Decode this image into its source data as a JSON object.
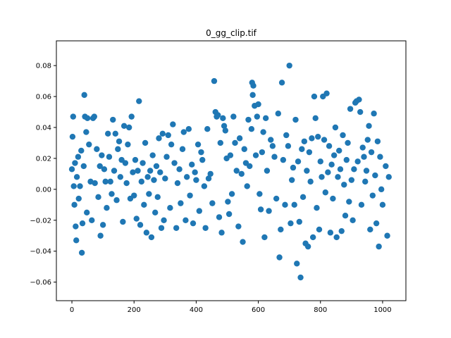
{
  "chart_data": {
    "type": "scatter",
    "title": "0_gg_clip.tif",
    "xlabel": "",
    "ylabel": "",
    "xlim": [
      -50,
      1075
    ],
    "ylim": [
      -0.072,
      0.096
    ],
    "xticks": [
      0,
      200,
      400,
      600,
      800,
      1000
    ],
    "xtick_labels": [
      "0",
      "200",
      "400",
      "600",
      "800",
      "1000"
    ],
    "yticks": [
      -0.06,
      -0.04,
      -0.02,
      0.0,
      0.02,
      0.04,
      0.06,
      0.08
    ],
    "ytick_labels": [
      "−0.06",
      "−0.04",
      "−0.02",
      "0.00",
      "0.02",
      "0.04",
      "0.06",
      "0.08"
    ],
    "grid": false,
    "marker_color": "#1f77b4",
    "series": [
      {
        "points": [
          [
            0,
            0.013
          ],
          [
            2,
            0.034
          ],
          [
            4,
            0.047
          ],
          [
            6,
            0.002
          ],
          [
            8,
            -0.01
          ],
          [
            10,
            0.017
          ],
          [
            12,
            -0.024
          ],
          [
            14,
            -0.033
          ],
          [
            16,
            0.008
          ],
          [
            20,
            0.021
          ],
          [
            22,
            -0.006
          ],
          [
            26,
            0.002
          ],
          [
            30,
            0.025
          ],
          [
            32,
            -0.041
          ],
          [
            34,
            -0.022
          ],
          [
            38,
            0.015
          ],
          [
            40,
            0.061
          ],
          [
            42,
            0.047
          ],
          [
            46,
            0.037
          ],
          [
            48,
            -0.015
          ],
          [
            50,
            0.046
          ],
          [
            55,
            0.029
          ],
          [
            60,
            0.005
          ],
          [
            64,
            -0.02
          ],
          [
            68,
            0.046
          ],
          [
            72,
            0.047
          ],
          [
            74,
            0.004
          ],
          [
            80,
            0.026
          ],
          [
            85,
            -0.005
          ],
          [
            90,
            0.015
          ],
          [
            92,
            -0.03
          ],
          [
            96,
            0.022
          ],
          [
            100,
            -0.023
          ],
          [
            104,
            0.013
          ],
          [
            108,
            0.005
          ],
          [
            112,
            -0.012
          ],
          [
            116,
            0.036
          ],
          [
            120,
            0.021
          ],
          [
            124,
            0.005
          ],
          [
            128,
            -0.003
          ],
          [
            132,
            0.045
          ],
          [
            136,
            0.012
          ],
          [
            140,
            0.036
          ],
          [
            144,
            -0.007
          ],
          [
            148,
            0.026
          ],
          [
            152,
            0.031
          ],
          [
            156,
            0.008
          ],
          [
            160,
            0.019
          ],
          [
            164,
            -0.021
          ],
          [
            168,
            0.041
          ],
          [
            172,
            0.017
          ],
          [
            176,
            0.004
          ],
          [
            180,
            0.029
          ],
          [
            184,
            0.04
          ],
          [
            188,
            -0.006
          ],
          [
            192,
            0.047
          ],
          [
            196,
            0.011
          ],
          [
            200,
            -0.004
          ],
          [
            204,
            0.019
          ],
          [
            208,
            -0.019
          ],
          [
            212,
            0.012
          ],
          [
            216,
            0.057
          ],
          [
            220,
            -0.023
          ],
          [
            224,
            0.005
          ],
          [
            228,
            0.017
          ],
          [
            232,
            -0.01
          ],
          [
            236,
            0.03
          ],
          [
            240,
            -0.028
          ],
          [
            244,
            0.008
          ],
          [
            248,
            -0.003
          ],
          [
            252,
            0.012
          ],
          [
            256,
            -0.031
          ],
          [
            260,
            0.022
          ],
          [
            264,
            0.006
          ],
          [
            268,
            -0.015
          ],
          [
            272,
            0.015
          ],
          [
            276,
            -0.005
          ],
          [
            280,
            0.033
          ],
          [
            284,
            0.011
          ],
          [
            288,
            -0.025
          ],
          [
            292,
            0.036
          ],
          [
            296,
            -0.02
          ],
          [
            300,
            0.007
          ],
          [
            305,
            0.021
          ],
          [
            310,
            0.035
          ],
          [
            316,
            -0.012
          ],
          [
            320,
            0.029
          ],
          [
            325,
            0.042
          ],
          [
            330,
            0.017
          ],
          [
            336,
            -0.025
          ],
          [
            340,
            0.004
          ],
          [
            346,
            0.013
          ],
          [
            350,
            -0.009
          ],
          [
            356,
            0.026
          ],
          [
            360,
            0.037
          ],
          [
            366,
            -0.02
          ],
          [
            370,
            0.008
          ],
          [
            376,
            0.039
          ],
          [
            380,
            -0.004
          ],
          [
            386,
            0.016
          ],
          [
            390,
            -0.022
          ],
          [
            396,
            0.011
          ],
          [
            400,
            0.006
          ],
          [
            406,
            0.029
          ],
          [
            410,
            -0.014
          ],
          [
            416,
            0.024
          ],
          [
            420,
            0.019
          ],
          [
            426,
            0.002
          ],
          [
            430,
            -0.025
          ],
          [
            436,
            0.039
          ],
          [
            440,
            0.007
          ],
          [
            446,
            0.01
          ],
          [
            452,
            -0.009
          ],
          [
            458,
            0.07
          ],
          [
            462,
            0.05
          ],
          [
            466,
            0.047
          ],
          [
            470,
            0.048
          ],
          [
            474,
            -0.018
          ],
          [
            478,
            0.03
          ],
          [
            482,
            -0.028
          ],
          [
            486,
            0.046
          ],
          [
            490,
            0.041
          ],
          [
            494,
            0.038
          ],
          [
            498,
            0.02
          ],
          [
            502,
            -0.008
          ],
          [
            506,
            -0.016
          ],
          [
            510,
            0.022
          ],
          [
            515,
            -0.003
          ],
          [
            520,
            0.047
          ],
          [
            525,
            0.03
          ],
          [
            530,
            0.012
          ],
          [
            536,
            -0.024
          ],
          [
            540,
            0.033
          ],
          [
            546,
            0.01
          ],
          [
            550,
            -0.034
          ],
          [
            555,
            0.026
          ],
          [
            560,
            0.017
          ],
          [
            564,
            0.002
          ],
          [
            568,
            0.045
          ],
          [
            572,
            0.015
          ],
          [
            578,
            0.039
          ],
          [
            580,
            0.069
          ],
          [
            582,
            0.061
          ],
          [
            584,
            0.067
          ],
          [
            588,
            0.054
          ],
          [
            592,
            0.022
          ],
          [
            596,
            0.047
          ],
          [
            600,
            0.055
          ],
          [
            604,
            -0.003
          ],
          [
            608,
            -0.013
          ],
          [
            612,
            0.024
          ],
          [
            616,
            0.037
          ],
          [
            620,
            -0.031
          ],
          [
            624,
            0.046
          ],
          [
            628,
            0.012
          ],
          [
            634,
            -0.014
          ],
          [
            640,
            0.032
          ],
          [
            646,
            0.028
          ],
          [
            652,
            0.021
          ],
          [
            658,
            -0.006
          ],
          [
            664,
            0.049
          ],
          [
            668,
            -0.044
          ],
          [
            672,
            -0.026
          ],
          [
            676,
            0.069
          ],
          [
            680,
            0.019
          ],
          [
            686,
            -0.01
          ],
          [
            690,
            0.035
          ],
          [
            696,
            0.028
          ],
          [
            700,
            0.08
          ],
          [
            704,
            -0.022
          ],
          [
            708,
            0.006
          ],
          [
            712,
            0.014
          ],
          [
            716,
            -0.01
          ],
          [
            720,
            0.045
          ],
          [
            724,
            -0.048
          ],
          [
            728,
            0.018
          ],
          [
            732,
            -0.021
          ],
          [
            736,
            -0.057
          ],
          [
            740,
            0.026
          ],
          [
            744,
            -0.005
          ],
          [
            748,
            0.031
          ],
          [
            752,
            -0.035
          ],
          [
            756,
            0.012
          ],
          [
            760,
            -0.037
          ],
          [
            764,
            0.024
          ],
          [
            768,
            0.005
          ],
          [
            772,
            0.033
          ],
          [
            776,
            -0.031
          ],
          [
            780,
            0.06
          ],
          [
            784,
            0.046
          ],
          [
            788,
            -0.012
          ],
          [
            792,
            0.034
          ],
          [
            796,
            -0.026
          ],
          [
            800,
            0.018
          ],
          [
            804,
            0.008
          ],
          [
            808,
            0.06
          ],
          [
            812,
            0.032
          ],
          [
            816,
            -0.002
          ],
          [
            820,
            0.062
          ],
          [
            824,
            0.011
          ],
          [
            828,
            0.028
          ],
          [
            832,
            -0.028
          ],
          [
            836,
            0.016
          ],
          [
            840,
            -0.006
          ],
          [
            844,
            0.022
          ],
          [
            848,
            0.04
          ],
          [
            852,
            -0.031
          ],
          [
            856,
            0.008
          ],
          [
            860,
            0.025
          ],
          [
            864,
            0.013
          ],
          [
            868,
            -0.027
          ],
          [
            872,
            0.035
          ],
          [
            876,
            0.003
          ],
          [
            880,
            -0.017
          ],
          [
            884,
            0.019
          ],
          [
            888,
            0.03
          ],
          [
            892,
            -0.008
          ],
          [
            896,
            0.052
          ],
          [
            900,
            0.006
          ],
          [
            904,
            -0.02
          ],
          [
            908,
            0.013
          ],
          [
            912,
            0.056
          ],
          [
            916,
            0.057
          ],
          [
            920,
            0.018
          ],
          [
            924,
            0.058
          ],
          [
            928,
            0.05
          ],
          [
            932,
            -0.01
          ],
          [
            936,
            0.027
          ],
          [
            940,
            0.021
          ],
          [
            944,
            0.005
          ],
          [
            948,
            0.012
          ],
          [
            952,
            0.032
          ],
          [
            956,
            0.041
          ],
          [
            960,
            -0.026
          ],
          [
            964,
            0.024
          ],
          [
            968,
            -0.004
          ],
          [
            972,
            0.049
          ],
          [
            976,
            0.009
          ],
          [
            980,
            -0.022
          ],
          [
            984,
            0.031
          ],
          [
            988,
            -0.037
          ],
          [
            992,
            0.021
          ],
          [
            996,
            0.0
          ],
          [
            1000,
            -0.01
          ],
          [
            1010,
            0.015
          ],
          [
            1015,
            -0.03
          ],
          [
            1020,
            0.008
          ]
        ]
      }
    ]
  }
}
